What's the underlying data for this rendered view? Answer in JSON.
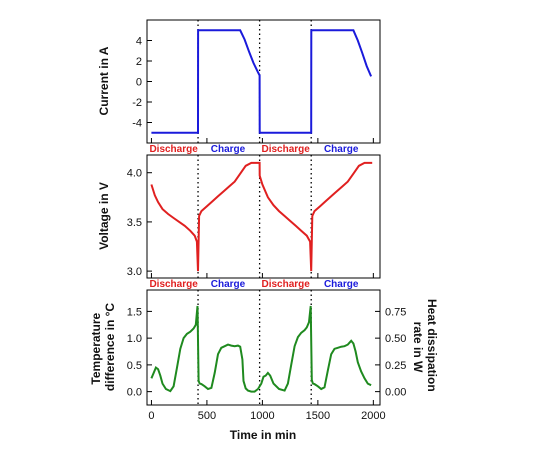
{
  "chart_data": [
    {
      "type": "line",
      "ylabel": "Current in A",
      "xlabel": "",
      "xlim": [
        -40,
        2060
      ],
      "ylim": [
        -6,
        6
      ],
      "yticks": [
        "4",
        "2",
        "0",
        "-2",
        "-4"
      ],
      "ytick_values": [
        4,
        2,
        0,
        -2,
        -4
      ],
      "colors": {
        "line": "#1a1adb"
      },
      "x": [
        0,
        420,
        421,
        800,
        840,
        880,
        920,
        960,
        975,
        976,
        1440,
        1441,
        1820,
        1860,
        1900,
        1940,
        1980
      ],
      "y": [
        -5,
        -5,
        5,
        5,
        4.1,
        2.9,
        1.8,
        0.9,
        0.6,
        -5,
        -5,
        5,
        5,
        4.0,
        2.8,
        1.5,
        0.5
      ],
      "phase_labels": [
        {
          "text": "Discharge",
          "color": "#e02020",
          "x": 200
        },
        {
          "text": "Charge",
          "color": "#1a1adb",
          "x": 690
        },
        {
          "text": "Discharge",
          "color": "#e02020",
          "x": 1210
        },
        {
          "text": "Charge",
          "color": "#1a1adb",
          "x": 1710
        }
      ]
    },
    {
      "type": "line",
      "ylabel": "Voltage in V",
      "xlabel": "",
      "xlim": [
        -40,
        2060
      ],
      "ylim": [
        2.93,
        4.18
      ],
      "yticks": [
        "4.0",
        "3.5",
        "3.0"
      ],
      "ytick_values": [
        4.0,
        3.5,
        3.0
      ],
      "colors": {
        "line": "#e02020"
      },
      "x": [
        0,
        30,
        60,
        100,
        150,
        200,
        250,
        300,
        350,
        390,
        410,
        420,
        430,
        450,
        500,
        550,
        600,
        650,
        700,
        750,
        800,
        850,
        900,
        975,
        976,
        1000,
        1050,
        1100,
        1150,
        1200,
        1250,
        1300,
        1350,
        1400,
        1430,
        1440,
        1450,
        1470,
        1520,
        1570,
        1620,
        1670,
        1720,
        1770,
        1820,
        1870,
        1920,
        1990
      ],
      "y": [
        3.88,
        3.77,
        3.7,
        3.63,
        3.58,
        3.54,
        3.5,
        3.46,
        3.41,
        3.36,
        3.3,
        3.0,
        3.56,
        3.61,
        3.66,
        3.71,
        3.76,
        3.81,
        3.86,
        3.91,
        3.99,
        4.07,
        4.1,
        4.1,
        3.97,
        3.88,
        3.75,
        3.67,
        3.61,
        3.56,
        3.51,
        3.46,
        3.41,
        3.36,
        3.3,
        3.0,
        3.56,
        3.61,
        3.66,
        3.71,
        3.76,
        3.81,
        3.86,
        3.91,
        3.99,
        4.07,
        4.1,
        4.1
      ],
      "phase_labels": [
        {
          "text": "Discharge",
          "color": "#e02020",
          "x": 200
        },
        {
          "text": "Charge",
          "color": "#1a1adb",
          "x": 690
        },
        {
          "text": "Discharge",
          "color": "#e02020",
          "x": 1210
        },
        {
          "text": "Charge",
          "color": "#1a1adb",
          "x": 1710
        }
      ]
    },
    {
      "type": "line",
      "ylabel": "Temperature difference in °C",
      "ylabel_lines": [
        "Temperature",
        "difference in °C"
      ],
      "y2label": "Heat dissipation rate in W",
      "y2label_lines": [
        "Heat dissipation",
        "rate in W"
      ],
      "xlabel": "Time in min",
      "xlim": [
        -40,
        2060
      ],
      "ylim": [
        -0.25,
        1.9
      ],
      "y2lim": [
        -0.125,
        0.95
      ],
      "yticks": [
        "1.5",
        "1.0",
        "0.5",
        "0.0"
      ],
      "ytick_values": [
        1.5,
        1.0,
        0.5,
        0.0
      ],
      "y2ticks": [
        "0.75",
        "0.50",
        "0.25",
        "0.00"
      ],
      "y2tick_values": [
        0.75,
        0.5,
        0.25,
        0.0
      ],
      "xticks": [
        "0",
        "500",
        "1000",
        "1500",
        "2000"
      ],
      "xtick_values": [
        0,
        500,
        1000,
        1500,
        2000
      ],
      "colors": {
        "line": "#1f8a1f"
      },
      "x": [
        0,
        20,
        40,
        60,
        80,
        100,
        130,
        170,
        200,
        230,
        260,
        290,
        320,
        350,
        380,
        400,
        415,
        425,
        435,
        450,
        480,
        510,
        540,
        570,
        600,
        630,
        660,
        690,
        720,
        750,
        780,
        800,
        820,
        830,
        850,
        870,
        900,
        930,
        960,
        990,
        1010,
        1030,
        1050,
        1070,
        1100,
        1150,
        1200,
        1230,
        1260,
        1290,
        1320,
        1350,
        1380,
        1400,
        1420,
        1435,
        1445,
        1455,
        1470,
        1500,
        1530,
        1560,
        1590,
        1620,
        1650,
        1680,
        1710,
        1740,
        1770,
        1800,
        1820,
        1840,
        1860,
        1890,
        1920,
        1950,
        1980
      ],
      "y": [
        0.25,
        0.35,
        0.45,
        0.42,
        0.3,
        0.15,
        0.05,
        0.01,
        0.1,
        0.45,
        0.8,
        1.0,
        1.08,
        1.12,
        1.18,
        1.25,
        1.6,
        0.2,
        0.15,
        0.14,
        0.1,
        0.05,
        0.07,
        0.35,
        0.7,
        0.82,
        0.85,
        0.88,
        0.86,
        0.85,
        0.86,
        0.84,
        0.6,
        0.2,
        0.06,
        0.02,
        0.0,
        0.0,
        0.05,
        0.15,
        0.28,
        0.3,
        0.35,
        0.3,
        0.15,
        0.05,
        0.02,
        0.15,
        0.5,
        0.85,
        1.02,
        1.1,
        1.15,
        1.2,
        1.3,
        1.6,
        0.22,
        0.15,
        0.14,
        0.1,
        0.05,
        0.08,
        0.4,
        0.7,
        0.8,
        0.82,
        0.84,
        0.85,
        0.88,
        0.95,
        0.9,
        0.75,
        0.55,
        0.38,
        0.25,
        0.15,
        0.12
      ]
    }
  ],
  "boundaries": [
    420,
    975,
    1440
  ]
}
